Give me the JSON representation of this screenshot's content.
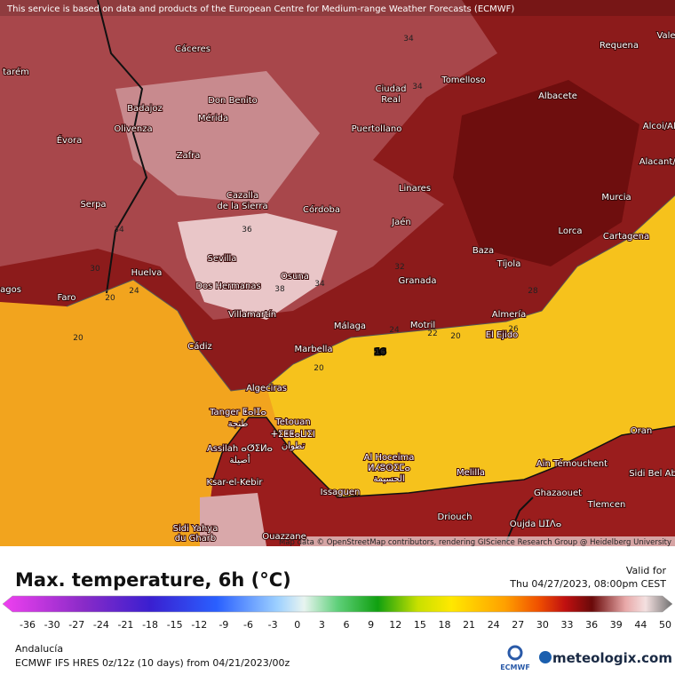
{
  "header": {
    "attribution": "This service is based on data and products of the European Centre for Medium-range Weather Forecasts (ECMWF)"
  },
  "map": {
    "cities": [
      "Cáceres",
      "Badajoz",
      "Don Benito",
      "Mérida",
      "Olivenza",
      "Évora",
      "Zafra",
      "Serpa",
      "Cazalla",
      "de la Sierra",
      "Córdoba",
      "Ciudad",
      "Real",
      "Puertollano",
      "Tomelloso",
      "Albacete",
      "Requena",
      "Linares",
      "Jaén",
      "Murcia",
      "Lorca",
      "Cartagena",
      "Baza",
      "Tíjola",
      "Granada",
      "Sevilla",
      "Dos Hermanas",
      "Osuna",
      "Villamartín",
      "Huelva",
      "Faro",
      "Cádiz",
      "Marbella",
      "Málaga",
      "Motril",
      "Almería",
      "El Ejido",
      "Algeciras",
      "Tanger ⵟⴰⵏⵊⴰ",
      "طنجة",
      "Tetouan",
      "ⵜⵉⵟⵟⴰⵡⵉⵏ",
      "تطوان",
      "Assilah ⴰⵚⵉⵍⴰ",
      "أصيلة",
      "Al Hoceima",
      "ⵍⵃⵓⵙⵉⵎⴰ",
      "الحسيمة",
      "Melilla",
      "Ain Témouchent",
      "Oran",
      "Sidi Bel Ab",
      "Ghazaouet",
      "Tlemcen",
      "Oujda ⵡⵊⴷⴰ",
      "Issaguen",
      "Ksar-el-Kebir",
      "Driouch",
      "Ouazzane",
      "Sidi Yahya",
      "du Gharb",
      "Alacant/Al",
      "Alcoi/Alc",
      "Vale",
      "Évora",
      "tarém",
      "agos"
    ],
    "contour_labels": [
      34,
      34,
      34,
      36,
      38,
      34,
      30,
      24,
      20,
      20,
      20,
      26,
      24,
      22,
      20,
      16,
      32,
      28
    ],
    "credit": "Map data © OpenStreetMap contributors, rendering GIScience Research Group @ Heidelberg University"
  },
  "legend": {
    "title": "Max. temperature, 6h (°C)",
    "valid_label": "Valid for",
    "valid_time": "Thu 04/27/2023, 08:00pm CEST",
    "ticks": [
      -36,
      -30,
      -27,
      -24,
      -21,
      -18,
      -15,
      -12,
      -9,
      -6,
      -3,
      0,
      3,
      6,
      9,
      12,
      15,
      18,
      21,
      24,
      27,
      30,
      33,
      36,
      39,
      44,
      50
    ]
  },
  "footer": {
    "region": "Andalucía",
    "model": "ECMWF IFS HRES 0z/12z (10 days) from 04/21/2023/00z",
    "ecmwf_logo": "ECMWF",
    "brand": "meteologix.com"
  }
}
